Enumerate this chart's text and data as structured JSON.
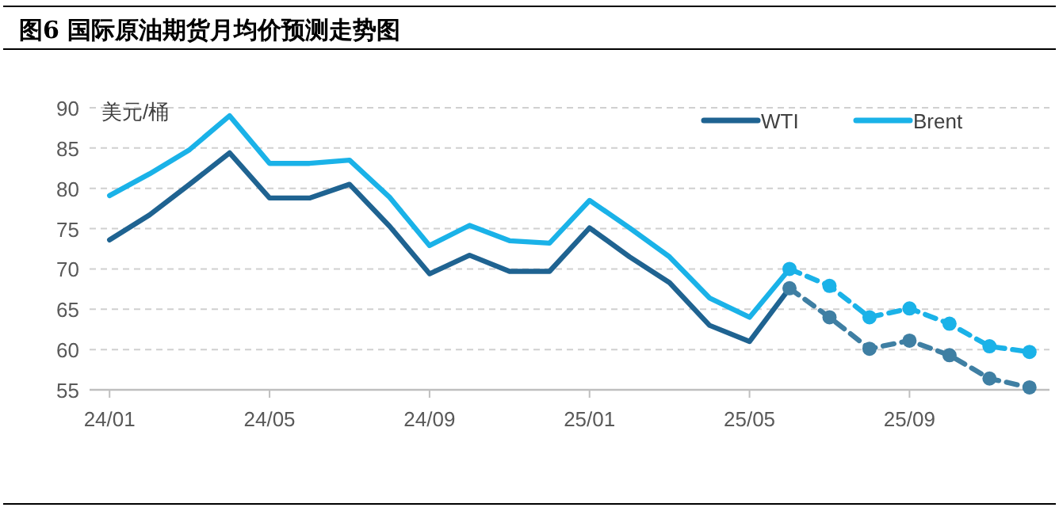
{
  "chart_data": {
    "type": "line",
    "title": "图6  国际原油期货月均价预测走势图",
    "ylabel": "美元/桶",
    "categories": [
      "24/01",
      null,
      null,
      null,
      "24/05",
      null,
      null,
      null,
      "24/09",
      null,
      null,
      null,
      "25/01",
      null,
      null,
      null,
      "25/05",
      null,
      null,
      null,
      "25/09",
      null,
      null,
      null
    ],
    "series": [
      {
        "name": "WTI",
        "color": "#1f6391",
        "line_style": "solid",
        "marker": "none",
        "values": [
          73.6,
          76.7,
          80.5,
          84.4,
          78.8,
          78.8,
          80.5,
          75.3,
          69.4,
          71.7,
          69.7,
          69.7,
          75.1,
          71.5,
          68.3,
          63.0,
          61.0,
          67.6,
          null,
          null,
          null,
          null,
          null,
          null
        ]
      },
      {
        "name": "Brent",
        "color": "#1ab2e8",
        "line_style": "solid",
        "marker": "none",
        "values": [
          79.1,
          81.8,
          84.8,
          89.0,
          83.1,
          83.1,
          83.5,
          78.9,
          72.9,
          75.4,
          73.5,
          73.2,
          78.5,
          75.1,
          71.5,
          66.4,
          64.0,
          70.0,
          null,
          null,
          null,
          null,
          null,
          null
        ]
      },
      {
        "color": "#3f7fa3",
        "line_style": "dashed",
        "marker": "circle",
        "values": [
          null,
          null,
          null,
          null,
          null,
          null,
          null,
          null,
          null,
          null,
          null,
          null,
          null,
          null,
          null,
          null,
          null,
          67.6,
          64.0,
          60.1,
          61.1,
          59.3,
          56.4,
          55.3
        ]
      },
      {
        "color": "#1ab2e8",
        "line_style": "dashed",
        "marker": "circle",
        "values": [
          null,
          null,
          null,
          null,
          null,
          null,
          null,
          null,
          null,
          null,
          null,
          null,
          null,
          null,
          null,
          null,
          null,
          70.0,
          67.9,
          64.0,
          65.1,
          63.2,
          60.4,
          59.7
        ]
      }
    ],
    "ylim": [
      55,
      90
    ],
    "yticks": [
      55,
      60,
      65,
      70,
      75,
      80,
      85,
      90
    ],
    "grid": "y",
    "legend": "top right"
  }
}
